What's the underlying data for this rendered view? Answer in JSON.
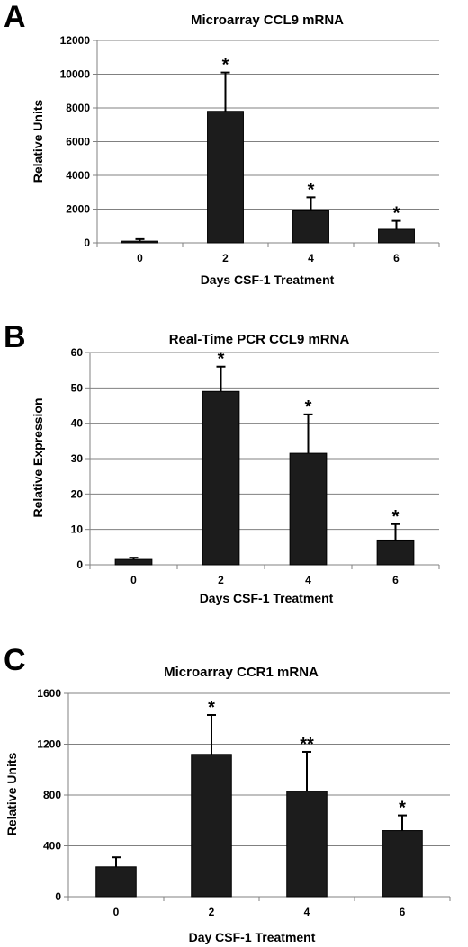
{
  "colors": {
    "bar": "#1c1c1c",
    "axis": "#808080",
    "grid": "#808080",
    "text": "#000000"
  },
  "chart_data": [
    {
      "type": "bar",
      "panel": "A",
      "title": "Microarray CCL9 mRNA",
      "xlabel": "Days CSF-1 Treatment",
      "ylabel": "Relative Units",
      "categories": [
        "0",
        "2",
        "4",
        "6"
      ],
      "values": [
        100,
        7800,
        1900,
        800
      ],
      "error_upper": [
        120,
        2300,
        800,
        500
      ],
      "significance": [
        "",
        "*",
        "*",
        "*"
      ],
      "ylim": [
        0,
        12000
      ],
      "yticks": [
        "0",
        "2000",
        "4000",
        "6000",
        "8000",
        "10000",
        "12000"
      ],
      "grid": true
    },
    {
      "type": "bar",
      "panel": "B",
      "title": "Real-Time PCR CCL9 mRNA",
      "xlabel": "Days CSF-1 Treatment",
      "ylabel": "Relative Expression",
      "categories": [
        "0",
        "2",
        "4",
        "6"
      ],
      "values": [
        1.5,
        49,
        31.5,
        7
      ],
      "error_upper": [
        0.5,
        7,
        11,
        4.5
      ],
      "significance": [
        "",
        "*",
        "*",
        "*"
      ],
      "ylim": [
        0,
        60
      ],
      "yticks": [
        "0",
        "10",
        "20",
        "30",
        "40",
        "50",
        "60"
      ],
      "grid": true
    },
    {
      "type": "bar",
      "panel": "C",
      "title": "Microarray CCR1 mRNA",
      "xlabel": "Day CSF-1 Treatment",
      "ylabel": "Relative Units",
      "categories": [
        "0",
        "2",
        "4",
        "6"
      ],
      "values": [
        235,
        1120,
        830,
        520
      ],
      "error_upper": [
        75,
        310,
        310,
        120
      ],
      "significance": [
        "",
        "*",
        "**",
        "*"
      ],
      "ylim": [
        0,
        1600
      ],
      "yticks": [
        "0",
        "400",
        "800",
        "1200",
        "1600"
      ],
      "grid": true
    }
  ]
}
